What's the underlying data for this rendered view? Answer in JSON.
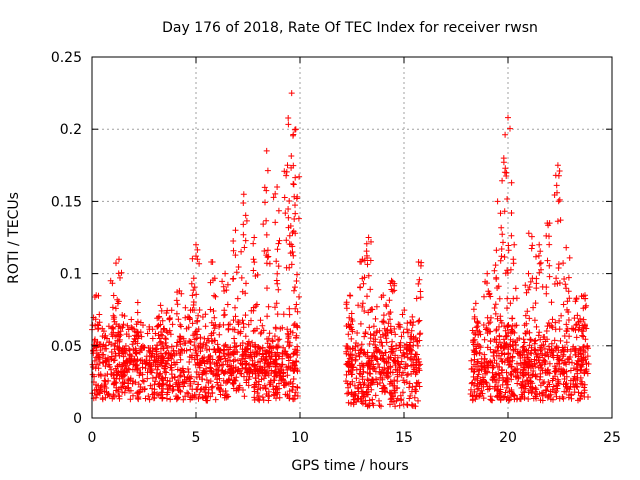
{
  "chart_data": {
    "type": "scatter",
    "title": "Day 176 of 2018, Rate Of TEC Index for receiver rwsn",
    "xlabel": "GPS time / hours",
    "ylabel": "ROTI / TECUs",
    "xlim": [
      0,
      25
    ],
    "ylim": [
      0,
      0.25
    ],
    "xticks": [
      0,
      5,
      10,
      15,
      20,
      25
    ],
    "xtick_labels": [
      "0",
      "5",
      "10",
      "15",
      "20",
      "25"
    ],
    "yticks": [
      0,
      0.05,
      0.1,
      0.15,
      0.2,
      0.25
    ],
    "ytick_labels": [
      "0",
      "0.05",
      "0.1",
      "0.15",
      "0.2",
      "0.25"
    ],
    "grid": true,
    "marker": "+",
    "color": "#ff0000",
    "segments": [
      {
        "x_start": 0.0,
        "x_end": 9.9,
        "y_base_min": 0.012,
        "y_base_max": 0.05
      },
      {
        "x_start": 12.2,
        "x_end": 15.8,
        "y_base_min": 0.008,
        "y_base_max": 0.05
      },
      {
        "x_start": 18.2,
        "x_end": 23.9,
        "y_base_min": 0.012,
        "y_base_max": 0.05
      }
    ],
    "peaks": [
      {
        "x": 0.2,
        "y": 0.085
      },
      {
        "x": 0.9,
        "y": 0.095
      },
      {
        "x": 1.3,
        "y": 0.11
      },
      {
        "x": 2.2,
        "y": 0.08
      },
      {
        "x": 3.3,
        "y": 0.078
      },
      {
        "x": 4.2,
        "y": 0.088
      },
      {
        "x": 4.8,
        "y": 0.093
      },
      {
        "x": 5.0,
        "y": 0.12
      },
      {
        "x": 5.8,
        "y": 0.108
      },
      {
        "x": 6.4,
        "y": 0.1
      },
      {
        "x": 6.9,
        "y": 0.13
      },
      {
        "x": 7.3,
        "y": 0.155
      },
      {
        "x": 7.8,
        "y": 0.125
      },
      {
        "x": 8.4,
        "y": 0.185
      },
      {
        "x": 8.9,
        "y": 0.16
      },
      {
        "x": 9.4,
        "y": 0.175
      },
      {
        "x": 9.6,
        "y": 0.225
      },
      {
        "x": 9.8,
        "y": 0.2
      },
      {
        "x": 12.4,
        "y": 0.085
      },
      {
        "x": 13.0,
        "y": 0.11
      },
      {
        "x": 13.3,
        "y": 0.125
      },
      {
        "x": 14.0,
        "y": 0.085
      },
      {
        "x": 14.4,
        "y": 0.095
      },
      {
        "x": 15.4,
        "y": 0.07
      },
      {
        "x": 15.7,
        "y": 0.108
      },
      {
        "x": 18.4,
        "y": 0.07
      },
      {
        "x": 19.0,
        "y": 0.1
      },
      {
        "x": 19.5,
        "y": 0.15
      },
      {
        "x": 19.8,
        "y": 0.18
      },
      {
        "x": 20.0,
        "y": 0.208
      },
      {
        "x": 20.3,
        "y": 0.12
      },
      {
        "x": 21.0,
        "y": 0.128
      },
      {
        "x": 21.5,
        "y": 0.12
      },
      {
        "x": 22.0,
        "y": 0.135
      },
      {
        "x": 22.4,
        "y": 0.175
      },
      {
        "x": 22.8,
        "y": 0.118
      },
      {
        "x": 23.3,
        "y": 0.083
      },
      {
        "x": 23.7,
        "y": 0.085
      }
    ]
  }
}
